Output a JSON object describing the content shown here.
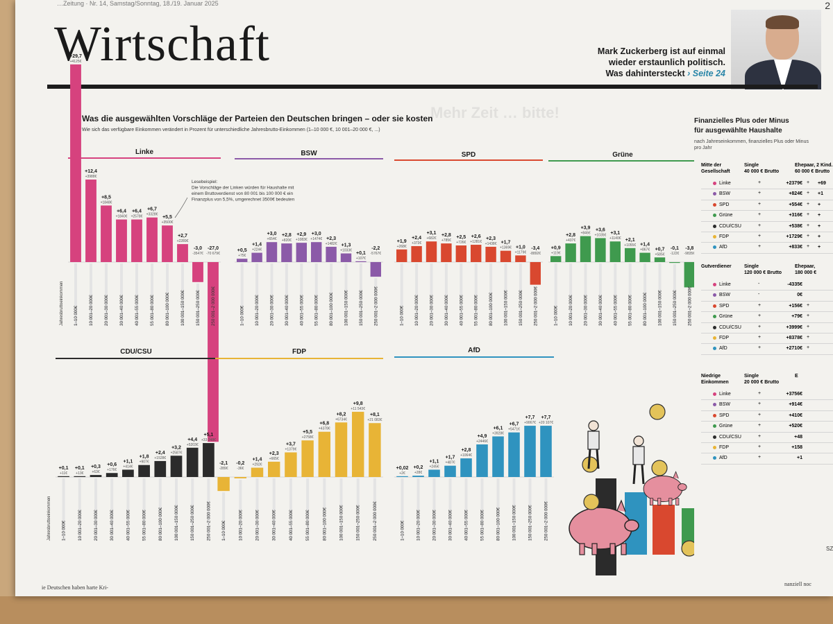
{
  "header": {
    "topline": "…Zeitung · Nr. 14, Samstag/Sonntag, 18./19. Januar 2025",
    "page_number": "2",
    "section": "Wirtschaft",
    "teaser_line1": "Mark Zuckerberg ist auf einmal",
    "teaser_line2": "wieder erstaunlich politisch.",
    "teaser_line3": "Was dahintersteckt",
    "teaser_ref": "› Seite 24",
    "overprint": "Mehr Zeit … bitte!"
  },
  "chart": {
    "title": "Was die ausgewählten Vorschläge der Parteien den Deutschen bringen – oder sie kosten",
    "subtitle": "Wie sich das verfügbare Einkommen verändert in Prozent für unterschiedliche Jahresbrutto-Einkommen (1–10 000 €, 10 001–20 000 €, ...)",
    "axis_title": "Jahresbruttoeinkommen",
    "annotation": [
      "Lesebeispiel:",
      "Die Vorschläge der Linken würden für Haushalte mit",
      "einem Bruttoverdienst von 80 001 bis 100 000 € ein",
      "Finanzplus von 5,5%, umgerechnet 3500€ bedeuten"
    ]
  },
  "chart_data": [
    {
      "type": "bar",
      "party": "Linke",
      "color": "#d6427e",
      "categories": [
        "1–10 000€",
        "10 001–20 000€",
        "20 001–30 000€",
        "30 001–40 000€",
        "40 001–55 000€",
        "55 001–80 000€",
        "80 001–100 000€",
        "100 001–150 000€",
        "150 001–250 000€",
        "250 001–2 000 000€"
      ],
      "values": [
        29.7,
        12.4,
        8.5,
        6.4,
        6.4,
        6.7,
        5.5,
        2.7,
        -3.0,
        -27.0
      ],
      "labels": [
        "+29,7",
        "+12,4",
        "+8,5",
        "+6,4",
        "+6,4",
        "+6,7",
        "+5,5",
        "+2,7",
        "-3,0",
        "-27,0"
      ],
      "amounts": [
        "+4125€",
        "+3988€",
        "+1848€",
        "+1840€",
        "+2578€",
        "+3328€",
        "+3500€",
        "+2289€",
        "-3547€",
        "-70 679€"
      ]
    },
    {
      "type": "bar",
      "party": "BSW",
      "color": "#8b5aa8",
      "categories": [
        "1–10 000€",
        "10 001–20 000€",
        "20 001–30 000€",
        "30 001–40 000€",
        "40 001–55 000€",
        "55 001–80 000€",
        "80 001–100 000€",
        "100 001–150 000€",
        "150 001–250 000€",
        "250 001–2 000 000€"
      ],
      "values": [
        0.5,
        1.4,
        3.0,
        2.8,
        2.9,
        3.0,
        2.3,
        1.3,
        0.1,
        -2.2
      ],
      "labels": [
        "+0,5",
        "+1,4",
        "+3,0",
        "+2,8",
        "+2,9",
        "+3,0",
        "+2,3",
        "+1,3",
        "+0,1",
        "-2,2"
      ],
      "amounts": [
        "+75€",
        "+224€",
        "+654€",
        "+820€",
        "+1083€",
        "+1474€",
        "+1482€",
        "+1033€",
        "+107€",
        "-5767€"
      ]
    },
    {
      "type": "bar",
      "party": "SPD",
      "color": "#d9482f",
      "categories": [
        "1–10 000€",
        "10 001–20 000€",
        "20 001–30 000€",
        "30 001–40 000€",
        "40 001–55 000€",
        "55 001–80 000€",
        "80 001–100 000€",
        "100 001–150 000€",
        "150 001–250 000€",
        "250 001–2 000 000€"
      ],
      "values": [
        1.9,
        2.4,
        3.1,
        2.8,
        2.5,
        2.6,
        2.3,
        1.7,
        1.0,
        -3.4
      ],
      "labels": [
        "+1,9",
        "+2,4",
        "+3,1",
        "+2,8",
        "+2,5",
        "+2,6",
        "+2,3",
        "+1,7",
        "+1,0",
        "-3,4"
      ],
      "amounts": [
        "+268€",
        "+373€",
        "+682€",
        "+785€",
        "+726€",
        "+1281€",
        "+1438€",
        "+1369€",
        "+1179€",
        "-8892€"
      ]
    },
    {
      "type": "bar",
      "party": "Grüne",
      "color": "#3f9a4e",
      "categories": [
        "1–10 000€",
        "10 001–20 000€",
        "20 001–30 000€",
        "30 001–40 000€",
        "40 001–55 000€",
        "55 001–80 000€",
        "80 001–100 000€",
        "100 001–150 000€",
        "150 001–250 000€",
        "250 001–2 000 000€"
      ],
      "values": [
        0.9,
        2.8,
        3.9,
        3.6,
        3.1,
        2.1,
        1.4,
        0.7,
        -0.1,
        -3.8
      ],
      "labels": [
        "+0,9",
        "+2,8",
        "+3,9",
        "+3,6",
        "+3,1",
        "+2,1",
        "+1,4",
        "+0,7",
        "-0,1",
        "-3,8"
      ],
      "amounts": [
        "+119€",
        "+437€",
        "+846€",
        "+1035€",
        "+1140€",
        "+1055€",
        "+867€",
        "+585€",
        "-122€",
        "-9835€"
      ]
    },
    {
      "type": "bar",
      "party": "CDU/CSU",
      "color": "#2b2b2b",
      "categories": [
        "1–10 000€",
        "10 001–20 000€",
        "20 001–30 000€",
        "30 001–40 000€",
        "40 001–55 000€",
        "55 001–80 000€",
        "80 001–100 000€",
        "100 001–150 000€",
        "150 001–250 000€",
        "250 001–2 000 000€"
      ],
      "values": [
        0.1,
        0.1,
        0.3,
        0.6,
        1.1,
        1.8,
        2.4,
        3.2,
        4.4,
        5.1
      ],
      "labels": [
        "+0,1",
        "+0,1",
        "+0,3",
        "+0,6",
        "+1,1",
        "+1,8",
        "+2,4",
        "+3,2",
        "+4,4",
        "+5,1"
      ],
      "amounts": [
        "+11€",
        "+13€",
        "+63€",
        "+176€",
        "+414€",
        "+907€",
        "+1528€",
        "+2587€",
        "+5203€",
        "+33 248€"
      ]
    },
    {
      "type": "bar",
      "party": "FDP",
      "color": "#e8b436",
      "categories": [
        "1–10 000€",
        "10 001–20 000€",
        "20 001–30 000€",
        "30 001–40 000€",
        "40 001–55 000€",
        "55 001–80 000€",
        "80 001–100 000€",
        "100 001–150 000€",
        "150 001–250 000€",
        "250 001–2 000 000€"
      ],
      "values": [
        -2.1,
        -0.2,
        1.4,
        2.3,
        3.7,
        5.5,
        6.8,
        8.2,
        9.8,
        8.1
      ],
      "labels": [
        "-2,1",
        "-0,2",
        "+1,4",
        "+2,3",
        "+3,7",
        "+5,5",
        "+6,8",
        "+8,2",
        "+9,8",
        "+8,1"
      ],
      "amounts": [
        "-289€",
        "-36€",
        "+292€",
        "+665€",
        "+1379€",
        "+2758€",
        "+4378€",
        "+6734€",
        "+11 543€",
        "+21 083€"
      ]
    },
    {
      "type": "bar",
      "party": "AfD",
      "color": "#2f93bf",
      "categories": [
        "1–10 000€",
        "10 001–20 000€",
        "20 001–30 000€",
        "30 001–40 000€",
        "40 001–55 000€",
        "55 001–80 000€",
        "80 001–100 000€",
        "100 001–150 000€",
        "150 001–250 000€",
        "250 001–2 000 000€"
      ],
      "values": [
        0.02,
        0.2,
        1.1,
        1.7,
        2.8,
        4.9,
        6.1,
        6.7,
        7.7,
        7.7
      ],
      "labels": [
        "+0,02",
        "+0,2",
        "+1,1",
        "+1,7",
        "+2,8",
        "+4,9",
        "+6,1",
        "+6,7",
        "+7,7",
        "+7,7"
      ],
      "amounts": [
        "+2€",
        "+28€",
        "+245€",
        "+487€",
        "+1064€",
        "+2446€",
        "+3928€",
        "+5471€",
        "+9067€",
        "+20 107€"
      ]
    }
  ],
  "sidebar": {
    "title_line1": "Finanzielles Plus oder Minus",
    "title_line2": "für ausgewählte Haushalte",
    "sub_line1": "nach Jahreseinkommen, finanzielles Plus oder Minus",
    "sub_line2": "pro Jahr",
    "groups": [
      {
        "label1": "Mitte der",
        "label2": "Gesellschaft",
        "col1a": "Single",
        "col1b": "40 000 € Brutto",
        "col2a": "Ehepaar, 2 Kind.",
        "col2b": "60 000 € Brutto",
        "rows": [
          {
            "party": "Linke",
            "color": "#d6427e",
            "sign": "+",
            "value": "+2379€",
            "sign2": "+",
            "value2": "+69"
          },
          {
            "party": "BSW",
            "color": "#8b5aa8",
            "sign": "+",
            "value": "+824€",
            "sign2": "+",
            "value2": "+1"
          },
          {
            "party": "SPD",
            "color": "#d9482f",
            "sign": "+",
            "value": "+554€",
            "sign2": "+",
            "value2": "+"
          },
          {
            "party": "Grüne",
            "color": "#3f9a4e",
            "sign": "+",
            "value": "+316€",
            "sign2": "+",
            "value2": "+"
          },
          {
            "party": "CDU/CSU",
            "color": "#2b2b2b",
            "sign": "+",
            "value": "+538€",
            "sign2": "+",
            "value2": "+"
          },
          {
            "party": "FDP",
            "color": "#e8b436",
            "sign": "+",
            "value": "+1729€",
            "sign2": "+",
            "value2": "+"
          },
          {
            "party": "AfD",
            "color": "#2f93bf",
            "sign": "+",
            "value": "+833€",
            "sign2": "+",
            "value2": "+"
          }
        ]
      },
      {
        "label1": "Gutverdiener",
        "label2": "",
        "col1a": "Single",
        "col1b": "120 000 € Brutto",
        "col2a": "Ehepaar,",
        "col2b": "180 000 €",
        "rows": [
          {
            "party": "Linke",
            "color": "#d6427e",
            "sign": "-",
            "value": "-4335€",
            "sign2": "",
            "value2": ""
          },
          {
            "party": "BSW",
            "color": "#8b5aa8",
            "sign": "-",
            "value": "0€",
            "sign2": "",
            "value2": ""
          },
          {
            "party": "SPD",
            "color": "#d9482f",
            "sign": "+",
            "value": "+156€",
            "sign2": "+",
            "value2": ""
          },
          {
            "party": "Grüne",
            "color": "#3f9a4e",
            "sign": "+",
            "value": "+79€",
            "sign2": "+",
            "value2": ""
          },
          {
            "party": "CDU/CSU",
            "color": "#2b2b2b",
            "sign": "+",
            "value": "+3999€",
            "sign2": "+",
            "value2": ""
          },
          {
            "party": "FDP",
            "color": "#e8b436",
            "sign": "+",
            "value": "+8378€",
            "sign2": "+",
            "value2": ""
          },
          {
            "party": "AfD",
            "color": "#2f93bf",
            "sign": "+",
            "value": "+2710€",
            "sign2": "+",
            "value2": ""
          }
        ]
      },
      {
        "label1": "Niedrige",
        "label2": "Einkommen",
        "col1a": "Single",
        "col1b": "20 000 € Brutto",
        "col2a": "E",
        "col2b": "",
        "rows": [
          {
            "party": "Linke",
            "color": "#d6427e",
            "sign": "+",
            "value": "+3756€",
            "sign2": "",
            "value2": ""
          },
          {
            "party": "BSW",
            "color": "#8b5aa8",
            "sign": "+",
            "value": "+914€",
            "sign2": "",
            "value2": ""
          },
          {
            "party": "SPD",
            "color": "#d9482f",
            "sign": "+",
            "value": "+410€",
            "sign2": "",
            "value2": ""
          },
          {
            "party": "Grüne",
            "color": "#3f9a4e",
            "sign": "+",
            "value": "+520€",
            "sign2": "",
            "value2": ""
          },
          {
            "party": "CDU/CSU",
            "color": "#2b2b2b",
            "sign": "+",
            "value": "+48",
            "sign2": "",
            "value2": ""
          },
          {
            "party": "FDP",
            "color": "#e8b436",
            "sign": "+",
            "value": "+158",
            "sign2": "",
            "value2": ""
          },
          {
            "party": "AfD",
            "color": "#2f93bf",
            "sign": "+",
            "value": "+1",
            "sign2": "",
            "value2": ""
          }
        ]
      }
    ]
  },
  "footer": {
    "text_left": "ie Deutschen haben harte Kri-",
    "text_right": "nanziell noc",
    "credit": "SZ"
  }
}
